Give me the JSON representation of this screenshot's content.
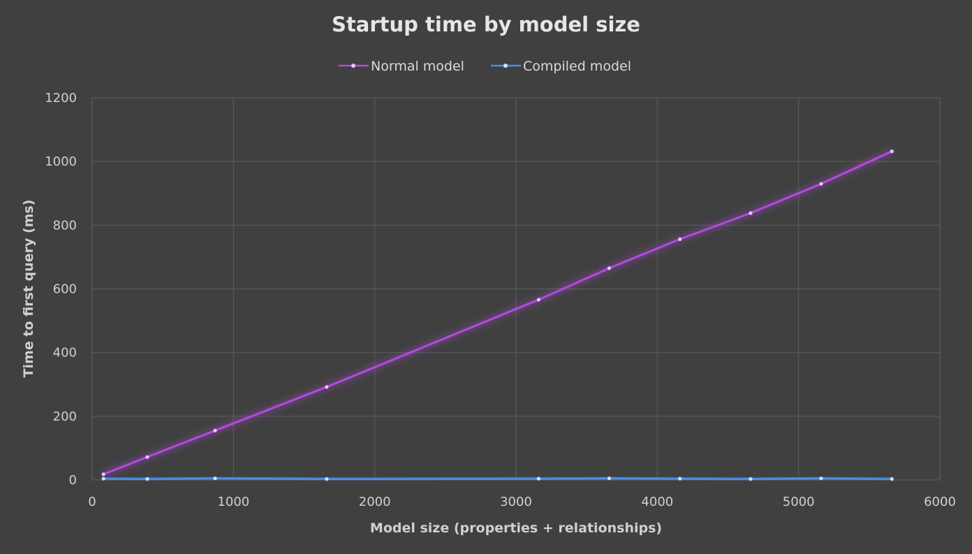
{
  "chart_data": {
    "type": "line",
    "title": "Startup time by model size",
    "xlabel": "Model size (properties + relationships)",
    "ylabel": "Time to first query (ms)",
    "xlim": [
      0,
      6000
    ],
    "ylim": [
      0,
      1200
    ],
    "xticks": [
      0,
      1000,
      2000,
      3000,
      4000,
      5000,
      6000
    ],
    "yticks": [
      0,
      200,
      400,
      600,
      800,
      1000,
      1200
    ],
    "x_tick_labels": [
      "0",
      "1000",
      "2000",
      "3000",
      "4000",
      "5000",
      "6000"
    ],
    "y_tick_labels": [
      "0",
      "200",
      "400",
      "600",
      "800",
      "1000",
      "1200"
    ],
    "grid": true,
    "legend_position": "top-center",
    "series": [
      {
        "name": "Normal model",
        "color": "#b44ae0",
        "points": [
          {
            "x": 80,
            "y": 18
          },
          {
            "x": 390,
            "y": 72
          },
          {
            "x": 870,
            "y": 155
          },
          {
            "x": 1660,
            "y": 292
          },
          {
            "x": 3160,
            "y": 566
          },
          {
            "x": 3660,
            "y": 665
          },
          {
            "x": 4160,
            "y": 756
          },
          {
            "x": 4660,
            "y": 838
          },
          {
            "x": 5160,
            "y": 930
          },
          {
            "x": 5660,
            "y": 1032
          }
        ]
      },
      {
        "name": "Compiled model",
        "color": "#4a8fe8",
        "points": [
          {
            "x": 80,
            "y": 4
          },
          {
            "x": 390,
            "y": 3
          },
          {
            "x": 870,
            "y": 5
          },
          {
            "x": 1660,
            "y": 3
          },
          {
            "x": 3160,
            "y": 4
          },
          {
            "x": 3660,
            "y": 5
          },
          {
            "x": 4160,
            "y": 4
          },
          {
            "x": 4660,
            "y": 3
          },
          {
            "x": 5160,
            "y": 5
          },
          {
            "x": 5660,
            "y": 3
          }
        ]
      }
    ]
  }
}
